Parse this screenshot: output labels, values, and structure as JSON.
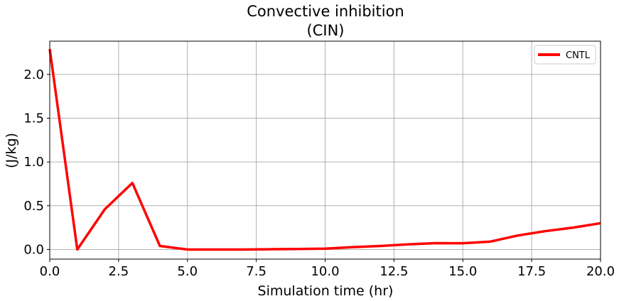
{
  "chart_data": {
    "type": "line",
    "title": "Convective inhibition",
    "subtitle": "(CIN)",
    "xlabel": "Simulation time (hr)",
    "ylabel": "(J/kg)",
    "xlim": [
      0,
      20
    ],
    "ylim": [
      -0.11,
      2.38
    ],
    "xticks": [
      0,
      2.5,
      5,
      7.5,
      10,
      12.5,
      15,
      17.5,
      20
    ],
    "xtick_labels": [
      "0.0",
      "2.5",
      "5.0",
      "7.5",
      "10.0",
      "12.5",
      "15.0",
      "17.5",
      "20.0"
    ],
    "yticks": [
      0,
      0.5,
      1,
      1.5,
      2
    ],
    "ytick_labels": [
      "0.0",
      "0.5",
      "1.0",
      "1.5",
      "2.0"
    ],
    "grid": true,
    "legend_position": "top-right",
    "series": [
      {
        "name": "CNTL",
        "color": "#ff0000",
        "x": [
          0,
          1,
          2,
          3,
          4,
          5,
          6,
          7,
          8,
          9,
          10,
          11,
          12,
          13,
          14,
          15,
          16,
          17,
          18,
          19,
          20
        ],
        "y": [
          2.29,
          0.0,
          0.46,
          0.76,
          0.04,
          0.0,
          0.0,
          0.0,
          0.003,
          0.006,
          0.01,
          0.027,
          0.04,
          0.058,
          0.072,
          0.071,
          0.09,
          0.16,
          0.21,
          0.25,
          0.3
        ]
      }
    ]
  }
}
